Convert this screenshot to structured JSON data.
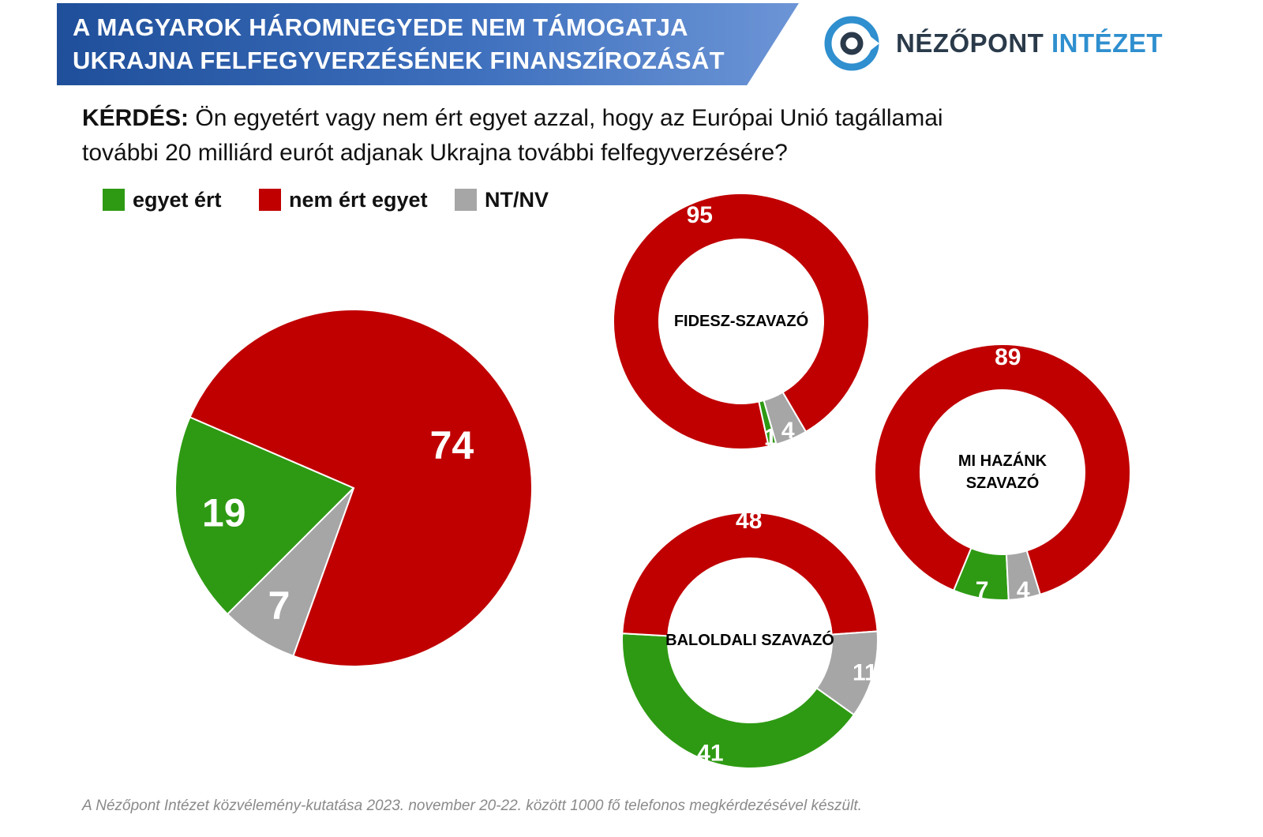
{
  "header": {
    "title_line1": "A MAGYAROK HÁROMNEGYEDE NEM TÁMOGATJA",
    "title_line2": "UKRAJNA FELFEGYVERZÉSÉNEK FINANSZÍROZÁSÁT"
  },
  "logo": {
    "name_part1": "NÉZŐPONT",
    "name_part2": "INTÉZET"
  },
  "question": {
    "label": "KÉRDÉS:",
    "text": "Ön egyetért vagy nem ért egyet azzal, hogy az Európai Unió tagállamai további 20 milliárd eurót adjanak Ukrajna további felfegyverzésére?"
  },
  "legend": [
    {
      "label": "egyet ért",
      "color": "#2e9a13"
    },
    {
      "label": "nem ért egyet",
      "color": "#c00000"
    },
    {
      "label": "NT/NV",
      "color": "#a6a6a6"
    }
  ],
  "footer": "A Nézőpont Intézet közvélemény-kutatása 2023. november 20-22. között 1000 fő telefonos megkérdezésével készült.",
  "colors": {
    "agree": "#2e9a13",
    "disagree": "#c00000",
    "dk": "#a6a6a6",
    "banner": "#2a5aa8"
  },
  "chart_data": [
    {
      "type": "pie",
      "title": "",
      "categories": [
        "egyet ért",
        "nem ért egyet",
        "NT/NV"
      ],
      "values": [
        19,
        74,
        7
      ]
    },
    {
      "type": "donut",
      "title": "FIDESZ-SZAVAZÓ",
      "categories": [
        "egyet ért",
        "nem ért egyet",
        "NT/NV"
      ],
      "values": [
        1,
        95,
        4
      ]
    },
    {
      "type": "donut",
      "title": "MI HAZÁNK SZAVAZÓ",
      "title_lines": [
        "MI HAZÁNK",
        "SZAVAZÓ"
      ],
      "categories": [
        "egyet ért",
        "nem ért egyet",
        "NT/NV"
      ],
      "values": [
        7,
        89,
        4
      ]
    },
    {
      "type": "donut",
      "title": "BALOLDALI SZAVAZÓ",
      "categories": [
        "egyet ért",
        "nem ért egyet",
        "NT/NV"
      ],
      "values": [
        41,
        48,
        11
      ]
    }
  ]
}
